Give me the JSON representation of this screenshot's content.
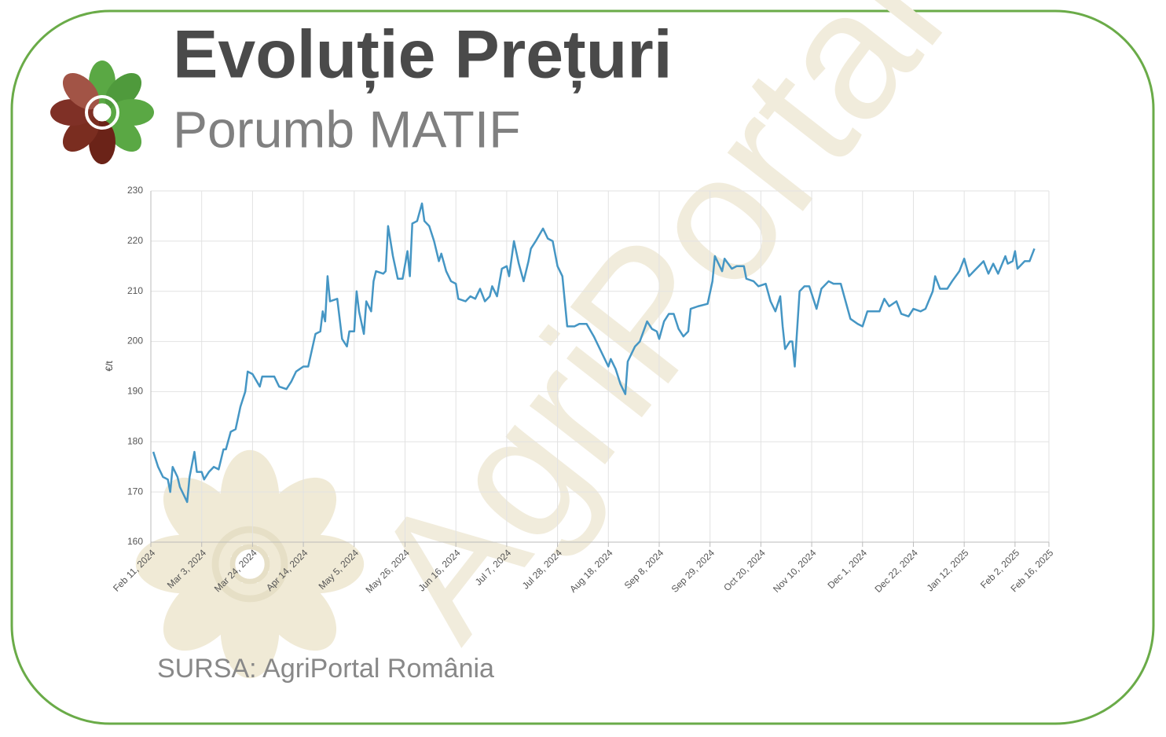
{
  "title": "Evoluție Prețuri",
  "subtitle": "Porumb MATIF",
  "source": "SURSA: AgriPortal România",
  "watermark": "AgriPortal",
  "chart_data": {
    "type": "line",
    "y_label": "€/t",
    "grid": true,
    "xlim": [
      "2024-02-11",
      "2025-02-16"
    ],
    "xticks": [
      {
        "value": "2024-02-11",
        "label": "Feb 11, 2024"
      },
      {
        "value": "2024-03-03",
        "label": "Mar 3, 2024"
      },
      {
        "value": "2024-03-24",
        "label": "Mar 24, 2024"
      },
      {
        "value": "2024-04-14",
        "label": "Apr 14, 2024"
      },
      {
        "value": "2024-05-05",
        "label": "May 5, 2024"
      },
      {
        "value": "2024-05-26",
        "label": "May 26, 2024"
      },
      {
        "value": "2024-06-16",
        "label": "Jun 16, 2024"
      },
      {
        "value": "2024-07-07",
        "label": "Jul 7, 2024"
      },
      {
        "value": "2024-07-28",
        "label": "Jul 28, 2024"
      },
      {
        "value": "2024-08-18",
        "label": "Aug 18, 2024"
      },
      {
        "value": "2024-09-08",
        "label": "Sep 8, 2024"
      },
      {
        "value": "2024-09-29",
        "label": "Sep 29, 2024"
      },
      {
        "value": "2024-10-20",
        "label": "Oct 20, 2024"
      },
      {
        "value": "2024-11-10",
        "label": "Nov 10, 2024"
      },
      {
        "value": "2024-12-01",
        "label": "Dec 1, 2024"
      },
      {
        "value": "2024-12-22",
        "label": "Dec 22, 2024"
      },
      {
        "value": "2025-01-12",
        "label": "Jan 12, 2025"
      },
      {
        "value": "2025-02-02",
        "label": "Feb 2, 2025"
      },
      {
        "value": "2025-02-16",
        "label": "Feb 16, 2025"
      }
    ],
    "ylim": [
      160,
      230
    ],
    "yticks": [
      160,
      170,
      180,
      190,
      200,
      210,
      220,
      230
    ],
    "series": [
      {
        "name": "Porumb MATIF",
        "color": "#4596c4",
        "x": [
          "2024-02-12",
          "2024-02-14",
          "2024-02-16",
          "2024-02-18",
          "2024-02-19",
          "2024-02-20",
          "2024-02-22",
          "2024-02-23",
          "2024-02-26",
          "2024-02-27",
          "2024-02-29",
          "2024-03-01",
          "2024-03-03",
          "2024-03-04",
          "2024-03-06",
          "2024-03-08",
          "2024-03-10",
          "2024-03-12",
          "2024-03-13",
          "2024-03-15",
          "2024-03-17",
          "2024-03-19",
          "2024-03-21",
          "2024-03-22",
          "2024-03-24",
          "2024-03-27",
          "2024-03-28",
          "2024-04-02",
          "2024-04-03",
          "2024-04-04",
          "2024-04-07",
          "2024-04-09",
          "2024-04-11",
          "2024-04-14",
          "2024-04-16",
          "2024-04-19",
          "2024-04-21",
          "2024-04-22",
          "2024-04-23",
          "2024-04-24",
          "2024-04-25",
          "2024-04-28",
          "2024-04-30",
          "2024-05-02",
          "2024-05-03",
          "2024-05-05",
          "2024-05-06",
          "2024-05-07",
          "2024-05-09",
          "2024-05-10",
          "2024-05-12",
          "2024-05-13",
          "2024-05-14",
          "2024-05-17",
          "2024-05-18",
          "2024-05-19",
          "2024-05-21",
          "2024-05-23",
          "2024-05-25",
          "2024-05-27",
          "2024-05-28",
          "2024-05-29",
          "2024-05-31",
          "2024-06-02",
          "2024-06-03",
          "2024-06-05",
          "2024-06-07",
          "2024-06-09",
          "2024-06-10",
          "2024-06-12",
          "2024-06-14",
          "2024-06-16",
          "2024-06-17",
          "2024-06-20",
          "2024-06-22",
          "2024-06-24",
          "2024-06-26",
          "2024-06-28",
          "2024-06-30",
          "2024-07-01",
          "2024-07-03",
          "2024-07-05",
          "2024-07-07",
          "2024-07-08",
          "2024-07-10",
          "2024-07-12",
          "2024-07-14",
          "2024-07-16",
          "2024-07-17",
          "2024-07-19",
          "2024-07-22",
          "2024-07-24",
          "2024-07-26",
          "2024-07-28",
          "2024-07-30",
          "2024-08-01",
          "2024-08-04",
          "2024-08-06",
          "2024-08-09",
          "2024-08-12",
          "2024-08-14",
          "2024-08-16",
          "2024-08-18",
          "2024-08-19",
          "2024-08-21",
          "2024-08-23",
          "2024-08-25",
          "2024-08-26",
          "2024-08-29",
          "2024-08-31",
          "2024-09-03",
          "2024-09-05",
          "2024-09-07",
          "2024-09-08",
          "2024-09-10",
          "2024-09-12",
          "2024-09-14",
          "2024-09-16",
          "2024-09-18",
          "2024-09-20",
          "2024-09-21",
          "2024-09-24",
          "2024-09-28",
          "2024-09-30",
          "2024-10-01",
          "2024-10-04",
          "2024-10-05",
          "2024-10-08",
          "2024-10-10",
          "2024-10-13",
          "2024-10-14",
          "2024-10-17",
          "2024-10-19",
          "2024-10-22",
          "2024-10-24",
          "2024-10-26",
          "2024-10-28",
          "2024-10-29",
          "2024-10-30",
          "2024-11-01",
          "2024-11-02",
          "2024-11-03",
          "2024-11-05",
          "2024-11-07",
          "2024-11-09",
          "2024-11-12",
          "2024-11-14",
          "2024-11-17",
          "2024-11-19",
          "2024-11-22",
          "2024-11-24",
          "2024-11-26",
          "2024-11-29",
          "2024-12-01",
          "2024-12-03",
          "2024-12-05",
          "2024-12-08",
          "2024-12-10",
          "2024-12-12",
          "2024-12-15",
          "2024-12-17",
          "2024-12-20",
          "2024-12-22",
          "2024-12-25",
          "2024-12-27",
          "2024-12-30",
          "2024-12-31",
          "2025-01-02",
          "2025-01-05",
          "2025-01-07",
          "2025-01-10",
          "2025-01-12",
          "2025-01-14",
          "2025-01-16",
          "2025-01-19",
          "2025-01-20",
          "2025-01-22",
          "2025-01-24",
          "2025-01-26",
          "2025-01-29",
          "2025-01-30",
          "2025-02-01",
          "2025-02-02",
          "2025-02-03",
          "2025-02-06",
          "2025-02-08",
          "2025-02-10"
        ],
        "values": [
          178,
          175,
          173,
          172.5,
          170,
          175,
          173,
          171,
          168,
          173,
          178,
          174,
          174,
          172.5,
          174,
          175,
          174.5,
          178.5,
          178.5,
          182,
          182.5,
          187,
          190,
          194,
          193.5,
          191,
          193,
          193,
          192,
          191,
          190.5,
          192,
          194,
          195,
          195,
          201.5,
          202,
          206,
          204,
          213,
          208,
          208.5,
          200.5,
          199,
          202,
          202,
          210,
          206,
          201.5,
          208,
          206,
          212,
          214,
          213.5,
          214,
          223,
          217,
          212.5,
          212.5,
          218,
          213,
          223.5,
          224,
          227.5,
          224,
          223,
          220,
          216,
          217.5,
          214,
          212,
          211.5,
          208.5,
          208,
          209,
          208.5,
          210.5,
          208,
          209,
          211,
          209,
          214.5,
          215,
          213,
          220,
          215.5,
          212,
          216,
          218.5,
          220,
          222.5,
          220.5,
          220,
          215,
          213,
          203,
          203,
          203.5,
          203.5,
          201,
          199,
          197,
          195,
          196.5,
          194.5,
          191.5,
          189.5,
          196,
          199,
          200,
          204,
          202.5,
          202,
          200.5,
          204,
          205.5,
          205.5,
          202.5,
          201,
          202,
          206.5,
          207,
          207.5,
          212,
          217,
          214,
          216.5,
          214.5,
          215,
          215,
          212.5,
          212,
          211,
          211.5,
          208,
          206,
          209,
          203,
          198.5,
          200,
          200,
          195,
          210,
          211,
          211,
          206.5,
          210.5,
          212,
          211.5,
          211.5,
          208,
          204.5,
          203.5,
          203,
          206,
          206,
          206,
          208.5,
          207,
          208,
          205.5,
          205,
          206.5,
          206,
          206.5,
          210,
          213,
          210.5,
          210.5,
          212,
          214,
          216.5,
          213,
          214,
          215.5,
          216,
          213.5,
          215.5,
          213.5,
          217,
          215.5,
          216,
          218,
          214.5,
          216,
          216,
          218.5
        ]
      }
    ]
  }
}
